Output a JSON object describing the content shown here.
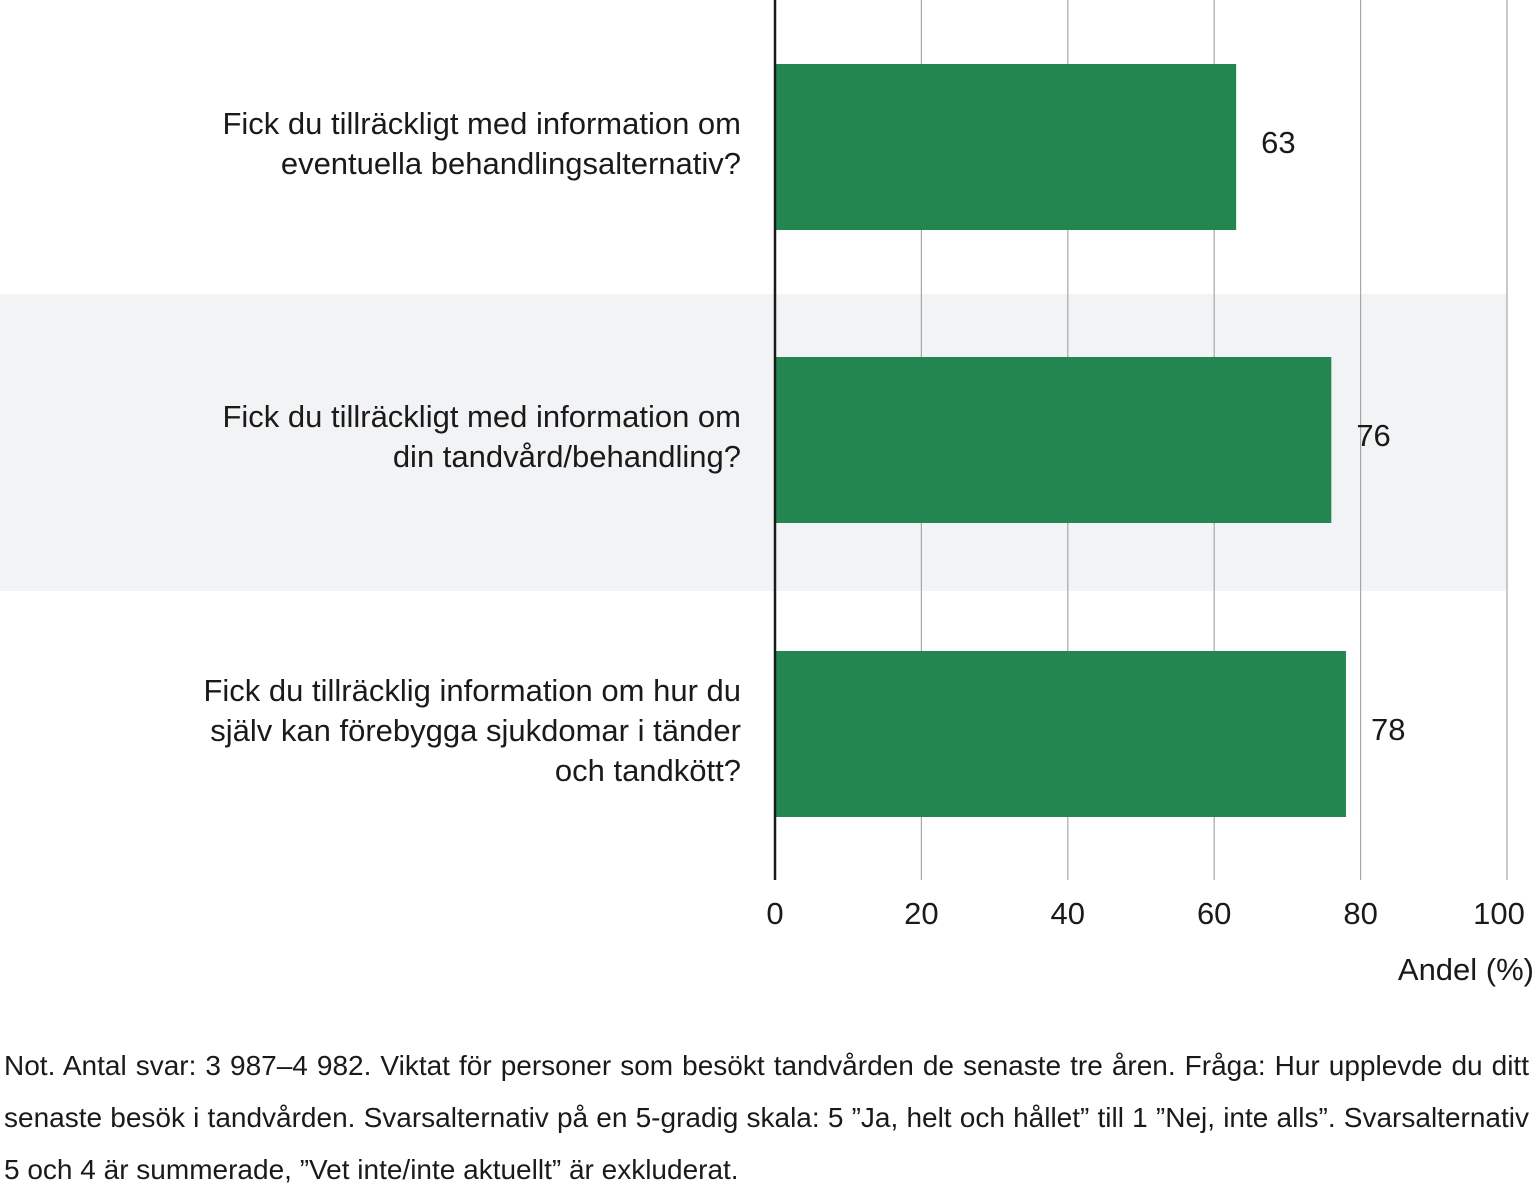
{
  "chart_data": {
    "type": "bar",
    "orientation": "horizontal",
    "categories": [
      "Fick du tillräckligt med information om eventuella behandlingsalternativ?",
      "Fick du tillräckligt med information om din tandvård/behandling?",
      "Fick du tillräcklig information om hur du själv kan förebygga sjukdomar i tänder och tandkött?"
    ],
    "category_lines": [
      [
        "Fick du tillräckligt med information om",
        "eventuella behandlingsalternativ?"
      ],
      [
        "Fick du tillräckligt med information om",
        "din tandvård/behandling?"
      ],
      [
        "Fick du tillräcklig information om hur du",
        "själv kan förebygga sjukdomar i tänder",
        "och tandkött?"
      ]
    ],
    "values": [
      63,
      76,
      78
    ],
    "value_labels": [
      "63",
      "76",
      "78"
    ],
    "xlim": [
      0,
      100
    ],
    "xticks": [
      0,
      20,
      40,
      60,
      80,
      100
    ],
    "xtick_labels": [
      "0",
      "20",
      "40",
      "60",
      "80",
      "100"
    ],
    "xlabel": "Andel (%)",
    "grid": true,
    "colors": {
      "bar": "#238651",
      "band": "#f2f3f4",
      "grid": "#a6a6a6",
      "axis": "#1a1a1a"
    }
  },
  "note": "Not. Antal svar: 3 987–4 982. Viktat för personer som besökt tandvården de senaste tre åren. Fråga: Hur upplevde du ditt senaste besök i tandvården. Svarsalternativ på en 5-gradig skala: 5 ”Ja, helt och hållet” till 1 ”Nej, inte alls”. Svarsalternativ 5 och 4 är summerade, ”Vet inte/inte aktuellt” är exkluderat."
}
